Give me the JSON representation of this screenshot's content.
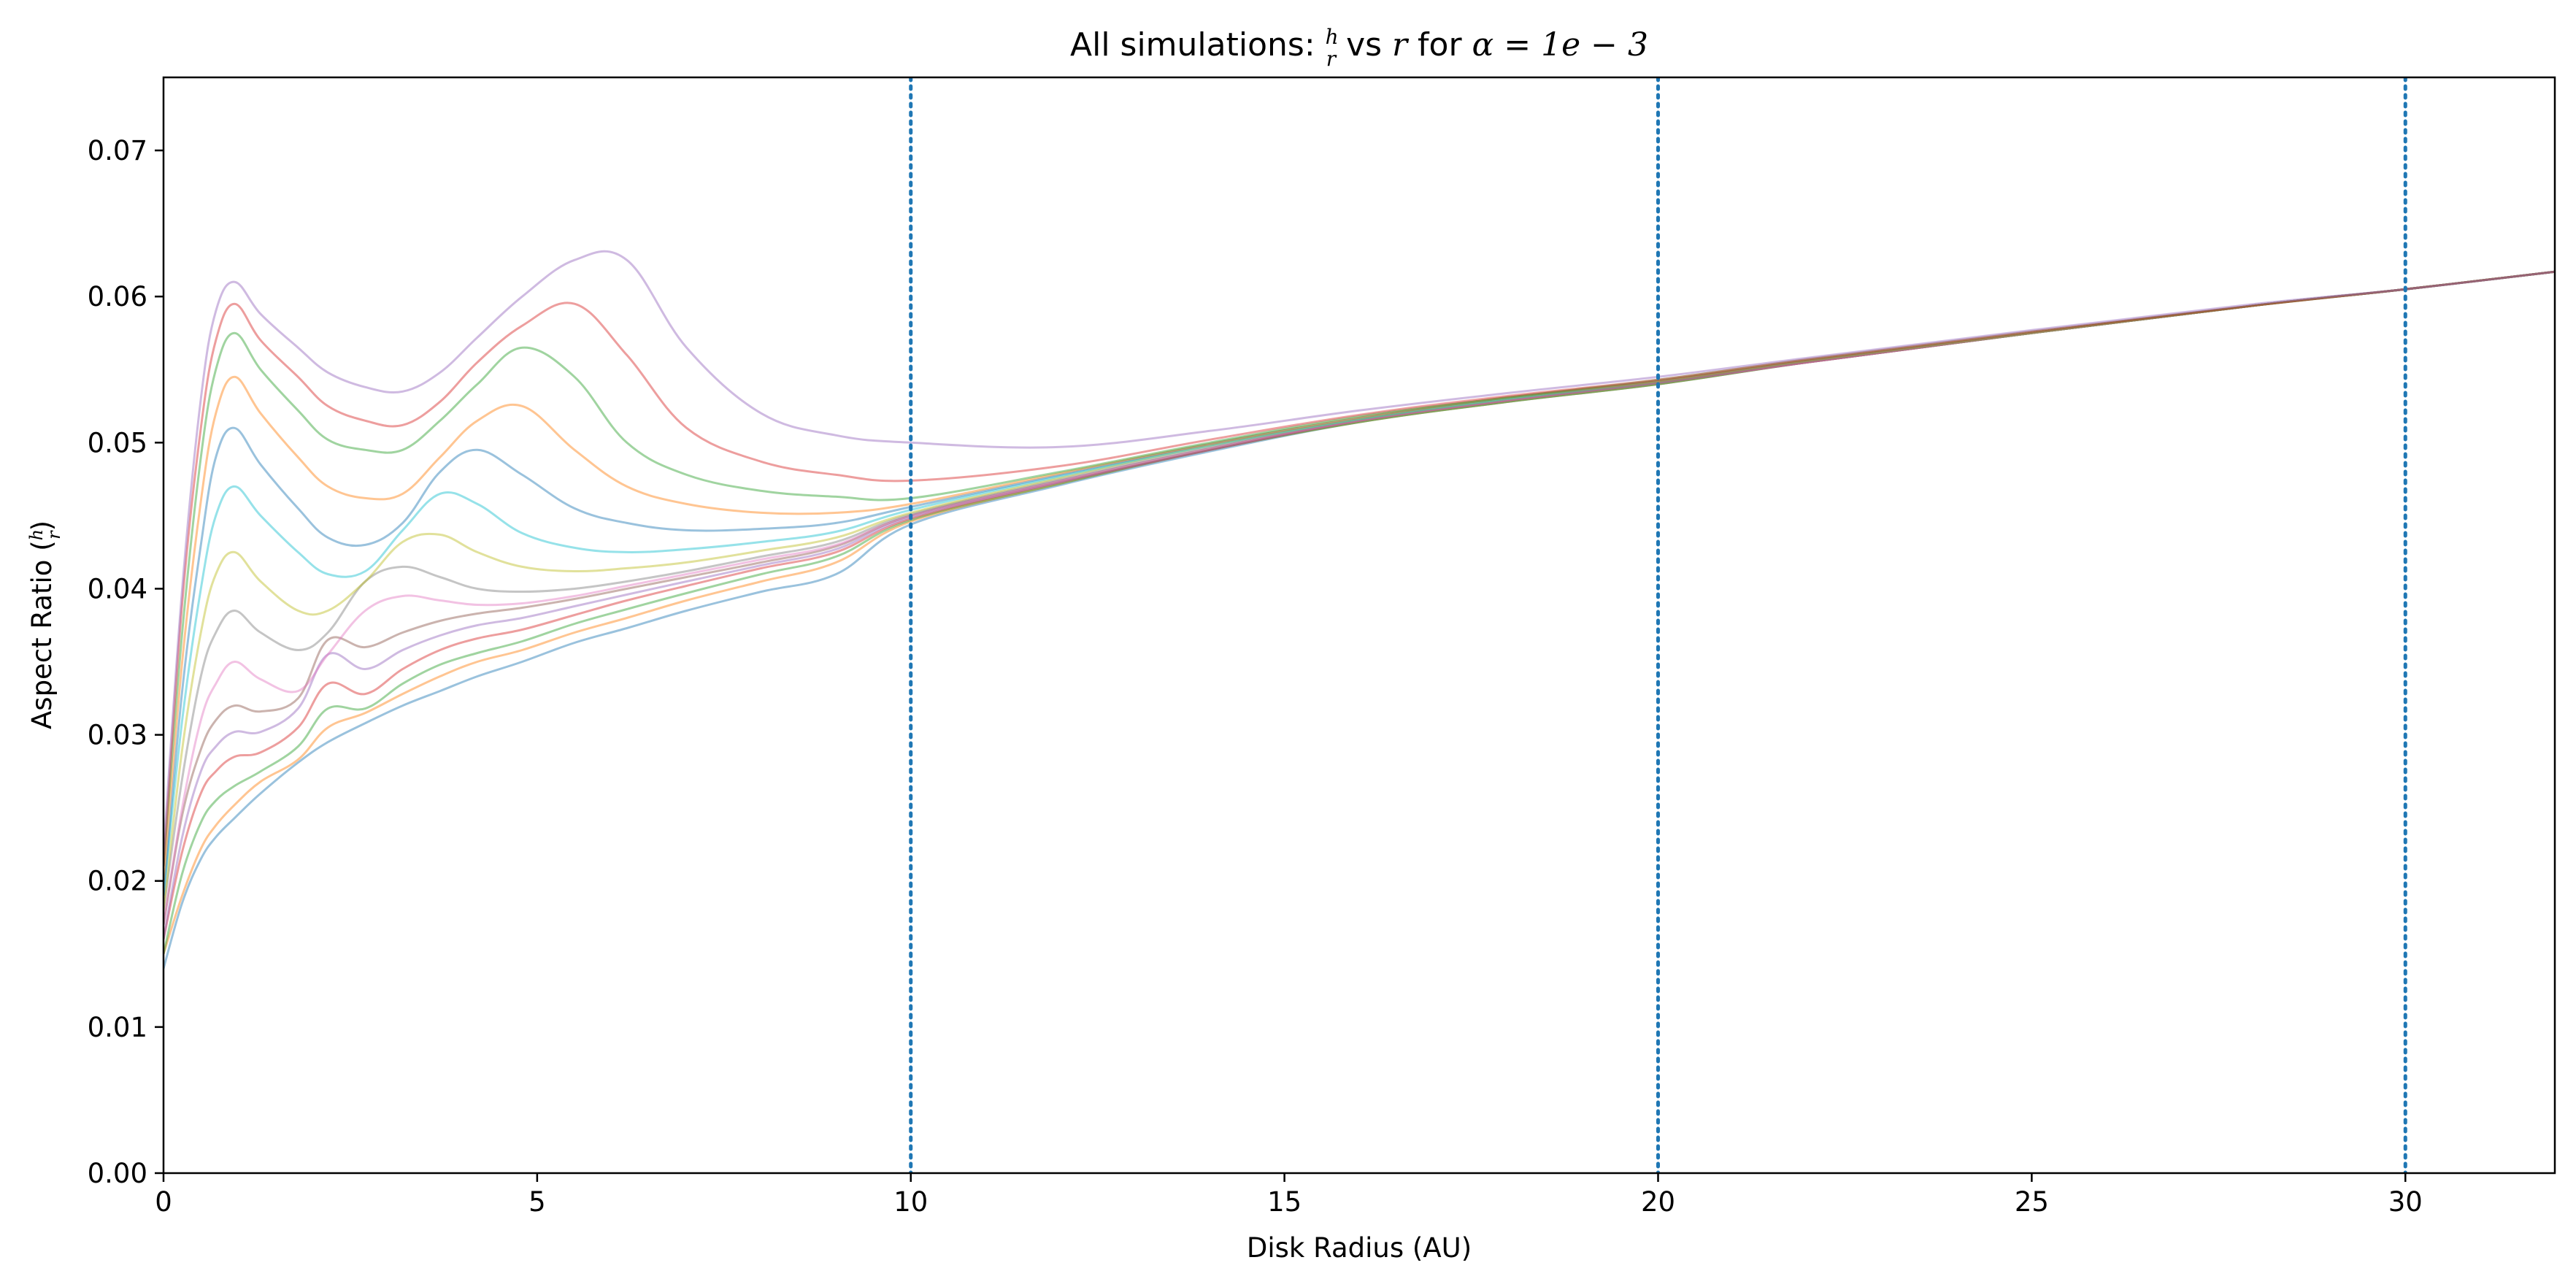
{
  "chart_data": {
    "type": "line",
    "title": {
      "prefix": "All simulations: ",
      "frac_num": "h",
      "frac_den": "r",
      "middle": " vs ",
      "var": "r",
      "for_text": " for ",
      "alpha": "α",
      "eq": " = ",
      "value": "1e − 3"
    },
    "xlabel": "Disk Radius (AU)",
    "ylabel": {
      "prefix": "Aspect Ratio (",
      "frac_num": "h",
      "frac_den": "r",
      "suffix": ")"
    },
    "xlim": [
      0,
      32
    ],
    "ylim": [
      0,
      0.075
    ],
    "x_ticks": [
      0,
      5,
      10,
      15,
      20,
      25,
      30
    ],
    "x_tick_labels": [
      "0",
      "5",
      "10",
      "15",
      "20",
      "25",
      "30"
    ],
    "y_ticks": [
      0,
      0.01,
      0.02,
      0.03,
      0.04,
      0.05,
      0.06,
      0.07
    ],
    "y_tick_labels": [
      "0.00",
      "0.01",
      "0.02",
      "0.03",
      "0.04",
      "0.05",
      "0.06",
      "0.07"
    ],
    "grid": false,
    "legend": "none",
    "vlines": {
      "x": [
        10,
        20,
        30
      ],
      "style": "dotted",
      "color": "#1f77b4"
    },
    "series_colors": [
      "#1f77b4",
      "#ff7f0e",
      "#2ca02c",
      "#d62728",
      "#9467bd",
      "#8c564b",
      "#e377c2",
      "#7f7f7f",
      "#bcbd22",
      "#17becf"
    ],
    "line_opacity": 0.45,
    "x": [
      0,
      0.25,
      0.5,
      0.7,
      0.95,
      1.3,
      1.8,
      2.2,
      2.7,
      3.2,
      3.7,
      4.2,
      4.8,
      5.5,
      6.2,
      7.0,
      8.0,
      9.0,
      10,
      12,
      14,
      16,
      18,
      20,
      22,
      25,
      28,
      30,
      32
    ],
    "series": [
      {
        "values": [
          0.014,
          0.0185,
          0.0215,
          0.023,
          0.0243,
          0.026,
          0.0281,
          0.0295,
          0.0308,
          0.032,
          0.033,
          0.034,
          0.035,
          0.0363,
          0.0373,
          0.0385,
          0.0398,
          0.041,
          0.0444,
          0.0471,
          0.0494,
          0.0514,
          0.0528,
          0.054,
          0.0555,
          0.0575,
          0.0594,
          0.0605,
          0.0617
        ]
      },
      {
        "values": [
          0.015,
          0.019,
          0.0222,
          0.0238,
          0.0252,
          0.0268,
          0.0283,
          0.0305,
          0.0315,
          0.0328,
          0.034,
          0.035,
          0.0358,
          0.037,
          0.038,
          0.0392,
          0.0405,
          0.0418,
          0.0446,
          0.0472,
          0.0495,
          0.0514,
          0.0528,
          0.054,
          0.0555,
          0.0575,
          0.0594,
          0.0605,
          0.0617
        ]
      },
      {
        "values": [
          0.015,
          0.0205,
          0.024,
          0.0255,
          0.0265,
          0.0275,
          0.0292,
          0.0318,
          0.0318,
          0.0335,
          0.0348,
          0.0356,
          0.0364,
          0.0376,
          0.0386,
          0.0397,
          0.041,
          0.0422,
          0.0447,
          0.0472,
          0.0495,
          0.0514,
          0.0528,
          0.054,
          0.0555,
          0.0575,
          0.0594,
          0.0605,
          0.0617
        ]
      },
      {
        "values": [
          0.016,
          0.022,
          0.026,
          0.0275,
          0.0285,
          0.0288,
          0.0305,
          0.0335,
          0.0328,
          0.0345,
          0.0358,
          0.0366,
          0.0372,
          0.0382,
          0.0392,
          0.0402,
          0.0414,
          0.0425,
          0.0448,
          0.0473,
          0.0495,
          0.0515,
          0.0529,
          0.0541,
          0.0555,
          0.0575,
          0.0594,
          0.0605,
          0.0617
        ]
      },
      {
        "values": [
          0.016,
          0.023,
          0.0275,
          0.0292,
          0.0302,
          0.0302,
          0.0318,
          0.0355,
          0.0345,
          0.0358,
          0.0368,
          0.0375,
          0.038,
          0.0388,
          0.0396,
          0.0405,
          0.0416,
          0.0427,
          0.0449,
          0.0473,
          0.0495,
          0.0515,
          0.0529,
          0.0541,
          0.0555,
          0.0575,
          0.0594,
          0.0605,
          0.0617
        ]
      },
      {
        "values": [
          0.017,
          0.0245,
          0.029,
          0.031,
          0.032,
          0.0316,
          0.0325,
          0.0365,
          0.036,
          0.037,
          0.0378,
          0.0383,
          0.0387,
          0.0393,
          0.04,
          0.0408,
          0.0418,
          0.0429,
          0.045,
          0.0474,
          0.0496,
          0.0515,
          0.0529,
          0.0541,
          0.0555,
          0.0575,
          0.0594,
          0.0605,
          0.0617
        ]
      },
      {
        "values": [
          0.017,
          0.025,
          0.031,
          0.0335,
          0.035,
          0.0338,
          0.033,
          0.0355,
          0.0385,
          0.0395,
          0.0392,
          0.0389,
          0.039,
          0.0395,
          0.0402,
          0.041,
          0.042,
          0.043,
          0.045,
          0.0474,
          0.0496,
          0.0515,
          0.0529,
          0.0541,
          0.0555,
          0.0575,
          0.0594,
          0.0605,
          0.0617
        ]
      },
      {
        "values": [
          0.018,
          0.027,
          0.034,
          0.037,
          0.0385,
          0.037,
          0.0358,
          0.037,
          0.0405,
          0.0415,
          0.0408,
          0.04,
          0.0398,
          0.04,
          0.0405,
          0.0412,
          0.0422,
          0.0432,
          0.0451,
          0.0475,
          0.0497,
          0.0516,
          0.053,
          0.0541,
          0.0556,
          0.0575,
          0.0594,
          0.0605,
          0.0617
        ]
      },
      {
        "values": [
          0.018,
          0.029,
          0.037,
          0.041,
          0.0425,
          0.0405,
          0.0385,
          0.0385,
          0.0405,
          0.0432,
          0.0437,
          0.0425,
          0.0415,
          0.0412,
          0.0414,
          0.0418,
          0.0426,
          0.0435,
          0.0452,
          0.0476,
          0.0498,
          0.0516,
          0.053,
          0.0542,
          0.0556,
          0.0575,
          0.0594,
          0.0605,
          0.0617
        ]
      },
      {
        "values": [
          0.019,
          0.031,
          0.04,
          0.045,
          0.047,
          0.045,
          0.0425,
          0.041,
          0.0412,
          0.044,
          0.0465,
          0.0458,
          0.0438,
          0.0428,
          0.0425,
          0.0427,
          0.0432,
          0.0439,
          0.0454,
          0.0477,
          0.0498,
          0.0516,
          0.053,
          0.0542,
          0.0556,
          0.0575,
          0.0594,
          0.0605,
          0.0617
        ]
      },
      {
        "values": [
          0.019,
          0.033,
          0.043,
          0.049,
          0.051,
          0.0485,
          0.0455,
          0.0435,
          0.043,
          0.0445,
          0.048,
          0.0495,
          0.0478,
          0.0455,
          0.0445,
          0.044,
          0.0441,
          0.0445,
          0.0456,
          0.0478,
          0.0499,
          0.0517,
          0.0531,
          0.0542,
          0.0556,
          0.0575,
          0.0594,
          0.0605,
          0.0617
        ]
      },
      {
        "values": [
          0.02,
          0.035,
          0.046,
          0.052,
          0.0545,
          0.052,
          0.049,
          0.047,
          0.0462,
          0.0465,
          0.049,
          0.0515,
          0.0525,
          0.0495,
          0.047,
          0.0458,
          0.0452,
          0.0452,
          0.0458,
          0.0479,
          0.0499,
          0.0517,
          0.0531,
          0.0542,
          0.0556,
          0.0575,
          0.0594,
          0.0605,
          0.0617
        ]
      },
      {
        "values": [
          0.021,
          0.037,
          0.049,
          0.055,
          0.0575,
          0.055,
          0.0522,
          0.0502,
          0.0495,
          0.0495,
          0.0515,
          0.054,
          0.0565,
          0.0545,
          0.05,
          0.0478,
          0.0467,
          0.0463,
          0.0462,
          0.048,
          0.05,
          0.0518,
          0.0531,
          0.0543,
          0.0557,
          0.0576,
          0.0594,
          0.0605,
          0.0617
        ]
      },
      {
        "values": [
          0.021,
          0.039,
          0.051,
          0.057,
          0.0595,
          0.057,
          0.0545,
          0.0525,
          0.0515,
          0.0512,
          0.0528,
          0.0555,
          0.058,
          0.0595,
          0.056,
          0.051,
          0.0487,
          0.0478,
          0.0474,
          0.0484,
          0.0502,
          0.0519,
          0.0532,
          0.0543,
          0.0557,
          0.0576,
          0.0594,
          0.0605,
          0.0617
        ]
      },
      {
        "values": [
          0.022,
          0.04,
          0.053,
          0.059,
          0.061,
          0.0588,
          0.0565,
          0.0548,
          0.0538,
          0.0535,
          0.0548,
          0.0572,
          0.06,
          0.0625,
          0.0625,
          0.0565,
          0.052,
          0.0505,
          0.05,
          0.0497,
          0.0508,
          0.0522,
          0.0534,
          0.0545,
          0.0558,
          0.0577,
          0.0595,
          0.0605,
          0.0617
        ]
      }
    ]
  }
}
